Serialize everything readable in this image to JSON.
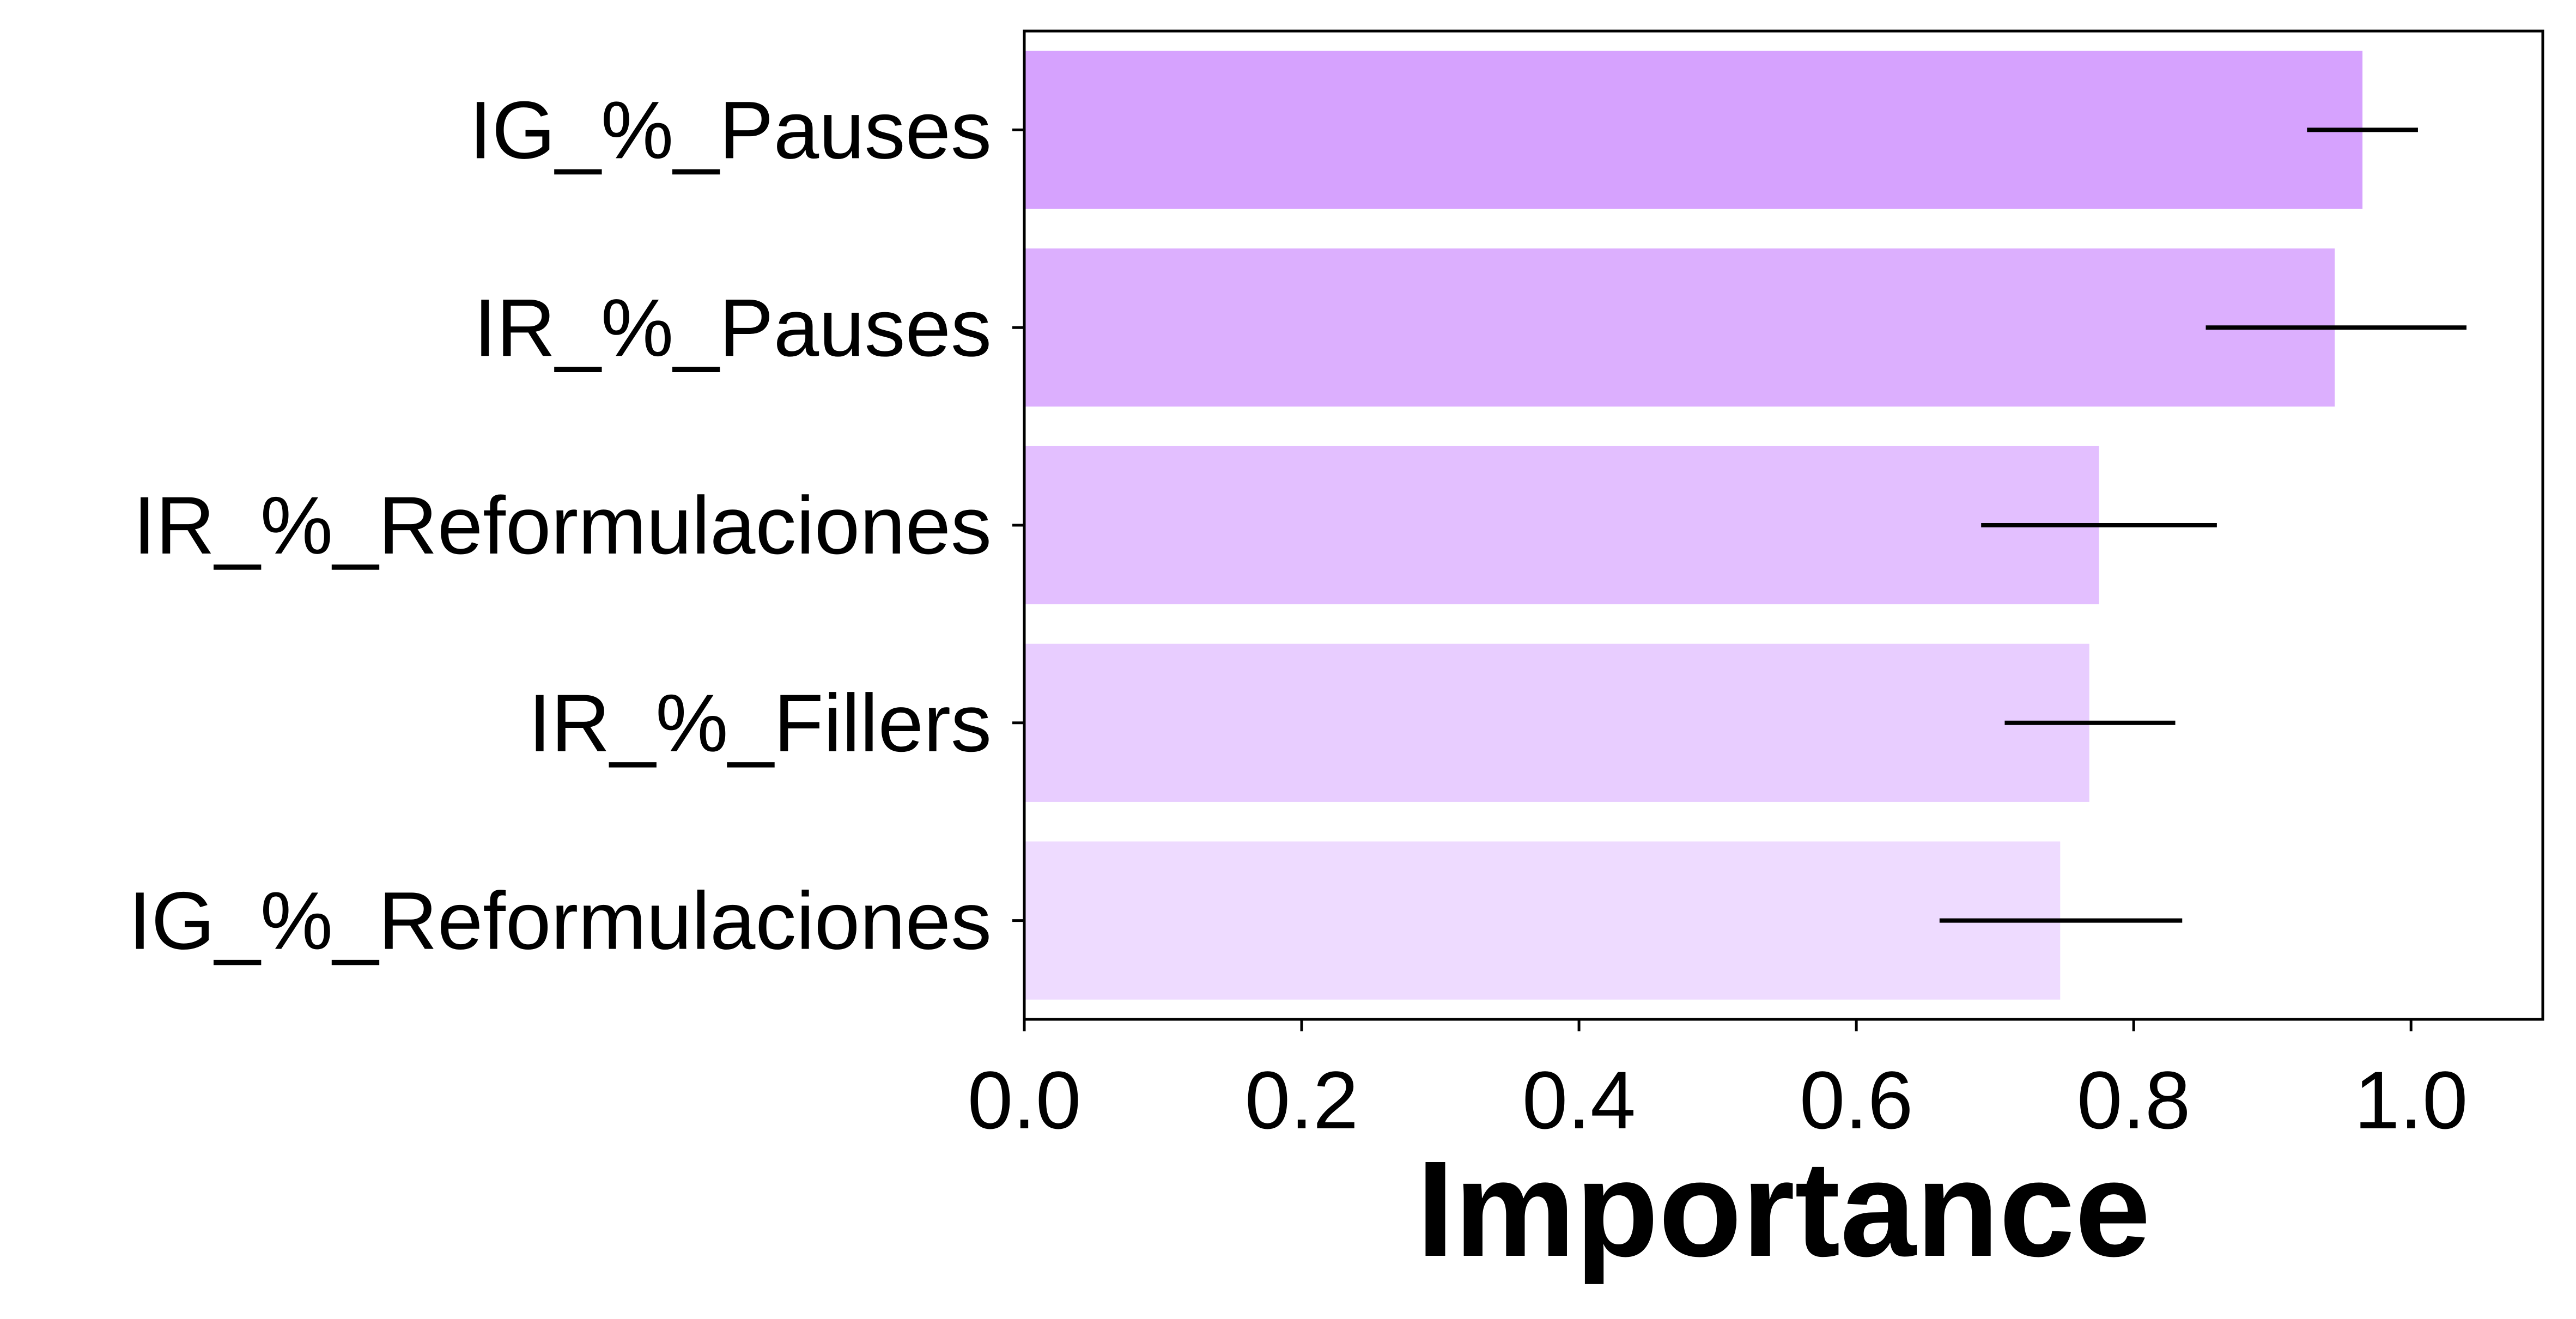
{
  "chart_data": {
    "type": "bar",
    "orientation": "horizontal",
    "title": "",
    "xlabel": "Importance",
    "ylabel": "",
    "categories": [
      "IG_%_Pauses",
      "IR_%_Pauses",
      "IR_%_Reformulaciones",
      "IR_%_Fillers",
      "IG_%_Reformulaciones"
    ],
    "values": [
      0.965,
      0.945,
      0.775,
      0.768,
      0.747
    ],
    "errors": [
      [
        0.925,
        1.005
      ],
      [
        0.852,
        1.04
      ],
      [
        0.69,
        0.86
      ],
      [
        0.707,
        0.83
      ],
      [
        0.66,
        0.835
      ]
    ],
    "colors": [
      "#d6a2fe",
      "#dcaffe",
      "#e3bfff",
      "#e8cdff",
      "#eedbff"
    ],
    "xlim": [
      0,
      1.095
    ],
    "xticks": [
      "0.0",
      "0.2",
      "0.4",
      "0.6",
      "0.8",
      "1.0"
    ],
    "grid": false,
    "legend": "none"
  }
}
